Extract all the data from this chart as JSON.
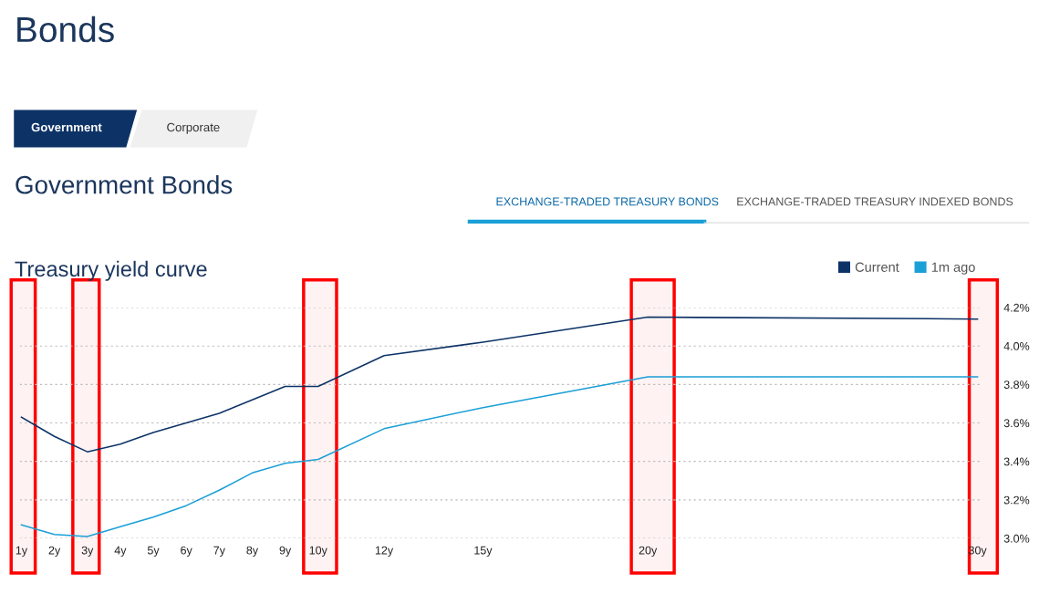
{
  "chart_data": {
    "type": "line",
    "title": "Treasury yield curve",
    "annotations": [
      "Bonds",
      "Government",
      "Corporate",
      "Government Bonds",
      "EXCHANGE-TRADED TREASURY BONDS",
      "EXCHANGE-TRADED TREASURY INDEXED BONDS"
    ],
    "x": [
      1,
      2,
      3,
      4,
      5,
      6,
      7,
      8,
      9,
      10,
      12,
      15,
      20,
      30
    ],
    "series": [
      {
        "name": "Current",
        "color": "#0d3366",
        "values": [
          3.63,
          3.53,
          3.45,
          3.49,
          3.55,
          3.6,
          3.65,
          3.72,
          3.79,
          3.79,
          3.95,
          4.02,
          4.15,
          4.14
        ]
      },
      {
        "name": "1m ago",
        "color": "#1a9fd6",
        "values": [
          3.07,
          3.02,
          3.01,
          3.06,
          3.11,
          3.17,
          3.25,
          3.34,
          3.39,
          3.41,
          3.57,
          3.68,
          3.84,
          3.84
        ]
      }
    ],
    "xlim": [
      0.95,
      30.1
    ],
    "xticks": [
      {
        "value": 1,
        "label": "1y"
      },
      {
        "value": 2,
        "label": "2y"
      },
      {
        "value": 3,
        "label": "3y"
      },
      {
        "value": 4,
        "label": "4y"
      },
      {
        "value": 5,
        "label": "5y"
      },
      {
        "value": 6,
        "label": "6y"
      },
      {
        "value": 7,
        "label": "7y"
      },
      {
        "value": 8,
        "label": "8y"
      },
      {
        "value": 9,
        "label": "9y"
      },
      {
        "value": 10,
        "label": "10y"
      },
      {
        "value": 12,
        "label": "12y"
      },
      {
        "value": 15,
        "label": "15y"
      },
      {
        "value": 20,
        "label": "20y"
      },
      {
        "value": 30,
        "label": "30y"
      }
    ],
    "ylim": [
      3.0,
      4.2
    ],
    "yticks": [
      {
        "value": 3.0,
        "label": "3.0%"
      },
      {
        "value": 3.2,
        "label": "3.2%"
      },
      {
        "value": 3.4,
        "label": "3.4%"
      },
      {
        "value": 3.6,
        "label": "3.6%"
      },
      {
        "value": 3.8,
        "label": "3.8%"
      },
      {
        "value": 4.0,
        "label": "4.0%"
      },
      {
        "value": 4.2,
        "label": "4.2%"
      }
    ],
    "bands": [
      {
        "axis": "x",
        "from": 0.69,
        "to": 1.42,
        "color": "#ff0000"
      },
      {
        "axis": "x",
        "from": 2.56,
        "to": 3.36,
        "color": "#ff0000"
      },
      {
        "axis": "x",
        "from": 9.56,
        "to": 10.56,
        "color": "#ff0000"
      },
      {
        "axis": "x",
        "from": 19.5,
        "to": 20.8,
        "color": "#ff0000"
      },
      {
        "axis": "x",
        "from": 29.75,
        "to": 30.6,
        "color": "#ff0000"
      }
    ],
    "grid": "y",
    "legend": "top right",
    "marker": "none",
    "line_style": "solid"
  }
}
